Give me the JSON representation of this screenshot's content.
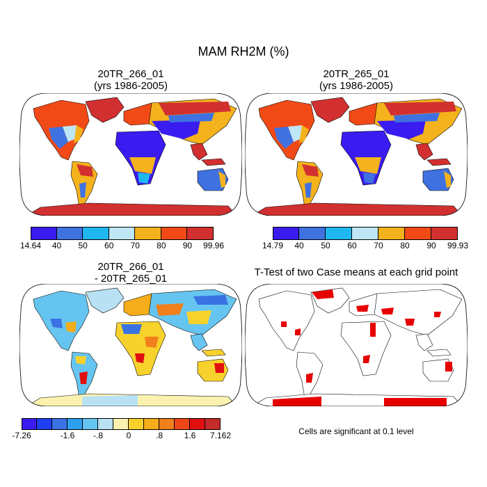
{
  "title": "MAM RH2M (%)",
  "panels": [
    {
      "title_line1": "20TR_266_01",
      "title_line2": "(yrs 1986-2005)"
    },
    {
      "title_line1": "20TR_265_01",
      "title_line2": "(yrs 1986-2005)"
    },
    {
      "title_line1": "20TR_266_01",
      "title_line2": "- 20TR_265_01"
    },
    {
      "title_line1": "T-Test of two Case means at each grid point"
    }
  ],
  "colorbars": {
    "cb1": {
      "colors": [
        "#3a1cf0",
        "#3f72e0",
        "#1fb7ef",
        "#bfe6f5",
        "#f4b21c",
        "#f24a17",
        "#d23030"
      ],
      "labels": [
        "14.64",
        "40",
        "50",
        "60",
        "70",
        "80",
        "90",
        "99.96"
      ]
    },
    "cb2": {
      "colors": [
        "#3a1cf0",
        "#3f72e0",
        "#1fb7ef",
        "#bfe6f5",
        "#f4b21c",
        "#f24a17",
        "#d23030"
      ],
      "labels": [
        "14.79",
        "40",
        "50",
        "60",
        "70",
        "80",
        "90",
        "99.93"
      ]
    },
    "cb3": {
      "colors": [
        "#3a1cf0",
        "#1f3ff0",
        "#3a72e4",
        "#2ca0ee",
        "#66c5f0",
        "#b8e2f3",
        "#fbf2b0",
        "#f8d22c",
        "#f5ad1a",
        "#f07f1c",
        "#ee4619",
        "#e01010",
        "#c42b2b"
      ],
      "labels": [
        "-7.26",
        "-1.6",
        "-.8",
        "0",
        ".8",
        "1.6",
        "7.162"
      ]
    }
  },
  "significance_note": "Cells are significant at 0.1 level"
}
